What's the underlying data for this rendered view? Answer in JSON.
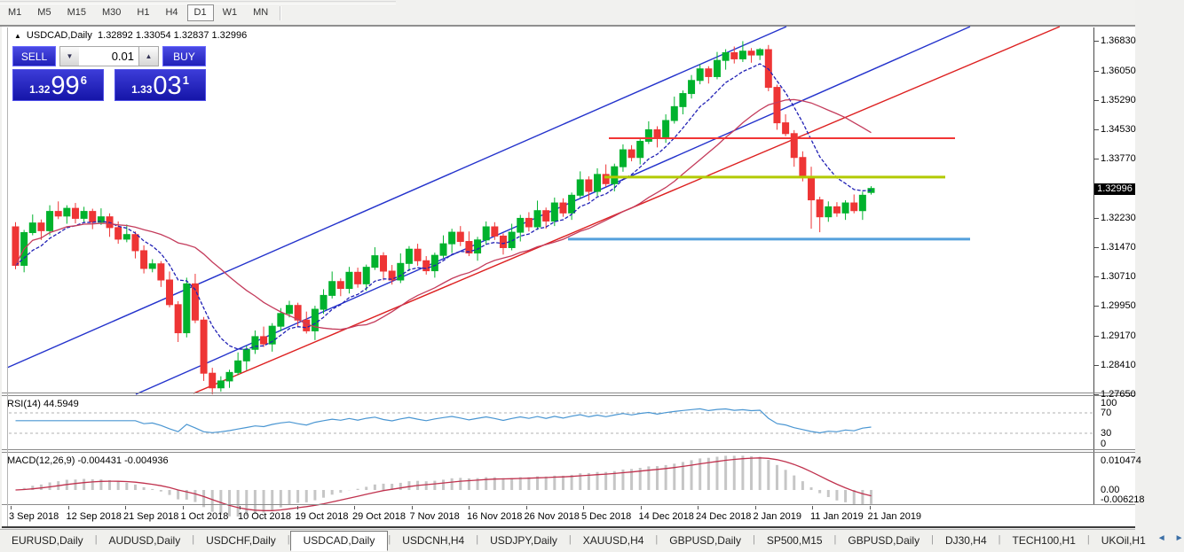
{
  "toolbar": {
    "timeframes": [
      "M1",
      "M5",
      "M15",
      "M30",
      "H1",
      "H4",
      "D1",
      "W1",
      "MN"
    ],
    "active_timeframe": "D1"
  },
  "header": {
    "collapse_arrow": "▲",
    "symbol": "USDCAD,Daily",
    "open": "1.32892",
    "high": "1.33054",
    "low": "1.32837",
    "close": "1.32996"
  },
  "trade_panel": {
    "sell_label": "SELL",
    "buy_label": "BUY",
    "volume": "0.01",
    "spinner_up": "▲",
    "spinner_down": "▼",
    "sell_price": {
      "small": "1.32",
      "big": "99",
      "sup": "6"
    },
    "buy_price": {
      "small": "1.33",
      "big": "03",
      "sup": "1"
    }
  },
  "chart_data": {
    "type": "candlestick",
    "symbol": "USDCAD",
    "timeframe": "Daily",
    "ylim": [
      1.2765,
      1.3683
    ],
    "price_axis_ticks": [
      "1.36830",
      "1.36050",
      "1.35290",
      "1.34530",
      "1.33770",
      "1.32230",
      "1.31470",
      "1.30710",
      "1.29950",
      "1.29170",
      "1.28410",
      "1.27650"
    ],
    "current_price": "1.32996",
    "x_axis_dates": [
      "3 Sep 2018",
      "12 Sep 2018",
      "21 Sep 2018",
      "1 Oct 2018",
      "10 Oct 2018",
      "19 Oct 2018",
      "29 Oct 2018",
      "7 Nov 2018",
      "16 Nov 2018",
      "26 Nov 2018",
      "5 Dec 2018",
      "14 Dec 2018",
      "24 Dec 2018",
      "2 Jan 2019",
      "11 Jan 2019",
      "21 Jan 2019"
    ],
    "closes": [
      1.31,
      1.3185,
      1.321,
      1.319,
      1.324,
      1.3228,
      1.3248,
      1.3222,
      1.324,
      1.3212,
      1.3226,
      1.3198,
      1.3168,
      1.318,
      1.3138,
      1.3092,
      1.3104,
      1.3062,
      1.2998,
      1.2925,
      1.3052,
      1.2958,
      1.282,
      1.2782,
      1.28,
      1.2822,
      1.2852,
      1.2882,
      1.2915,
      1.2896,
      1.2942,
      1.2975,
      1.2996,
      1.2958,
      1.293,
      1.2986,
      1.3022,
      1.3058,
      1.304,
      1.3082,
      1.3052,
      1.3095,
      1.3125,
      1.3085,
      1.3062,
      1.3105,
      1.3142,
      1.3112,
      1.3086,
      1.3126,
      1.3156,
      1.3186,
      1.3162,
      1.3132,
      1.3166,
      1.32,
      1.3176,
      1.3146,
      1.3186,
      1.3222,
      1.32,
      1.3242,
      1.3215,
      1.3262,
      1.3236,
      1.3282,
      1.3322,
      1.3292,
      1.3336,
      1.3312,
      1.3356,
      1.34,
      1.338,
      1.3422,
      1.3452,
      1.343,
      1.3476,
      1.3512,
      1.3546,
      1.358,
      1.361,
      1.359,
      1.3632,
      1.3652,
      1.3636,
      1.3656,
      1.3646,
      1.366,
      1.3562,
      1.347,
      1.3442,
      1.338,
      1.333,
      1.327,
      1.3226,
      1.3252,
      1.3236,
      1.3262,
      1.3242,
      1.3282,
      1.32996
    ],
    "first_open": 1.32,
    "wick_high_pattern": [
      0.0012,
      0.0007,
      0.0022,
      0.0009,
      0.0016,
      0.0026,
      0.0008,
      0.0014
    ],
    "wick_low_pattern": [
      0.001,
      0.0018,
      0.0007,
      0.0024,
      0.0012,
      0.0008,
      0.002,
      0.0013
    ],
    "overrides": {
      "23": {
        "low": 1.2765
      },
      "87": {
        "high": 1.3664
      },
      "93": {
        "low": 1.3195
      },
      "94": {
        "low": 1.3186
      },
      "100": {
        "open": 1.32892,
        "high": 1.33054,
        "low": 1.32837,
        "close": 1.32996
      }
    },
    "colors": {
      "up": "#00b22d",
      "down": "#ee3535",
      "ma_fast": "#2121b5",
      "ma_slow": "#c43c5c",
      "channel_blue": "#2433cc",
      "trend_red": "#dd2020"
    },
    "moving_averages": [
      {
        "type": "ema",
        "period": 8,
        "style": "dashed",
        "color": "#2121b5"
      },
      {
        "type": "sma",
        "period": 21,
        "style": "solid",
        "color": "#c43c5c"
      }
    ],
    "horizontal_lines": [
      {
        "price": 1.343,
        "x1": 686,
        "x2": 1076,
        "width": 2,
        "color": "#f23535"
      },
      {
        "price": 1.3329,
        "x1": 681,
        "x2": 1065,
        "width": 3,
        "color": "#b2ca00"
      },
      {
        "price": 1.3168,
        "x1": 640,
        "x2": 1093,
        "width": 3,
        "color": "#54a0dc"
      }
    ],
    "trendlines": [
      {
        "x1": 8,
        "y1": 415,
        "x2": 886,
        "y2": 30,
        "color": "#2433cc"
      },
      {
        "x1": 153,
        "y1": 445,
        "x2": 1093,
        "y2": 30,
        "color": "#2433cc"
      },
      {
        "x1": 218,
        "y1": 444,
        "x2": 1194,
        "y2": 30,
        "color": "#dd2020"
      }
    ],
    "indicators": {
      "rsi": {
        "label": "RSI(14) 44.5949",
        "period": 14,
        "value": 44.5949,
        "levels": [
          70,
          30
        ],
        "axis": [
          "100",
          "70",
          "30",
          "0"
        ],
        "color": "#4a96d2"
      },
      "macd": {
        "label": "MACD(12,26,9) -0.004431 -0.004936",
        "fast": 12,
        "slow": 26,
        "signal": 9,
        "value_main": -0.004431,
        "value_signal": -0.004936,
        "axis": [
          "0.010474",
          "0.00",
          "-0.006218"
        ],
        "bar_color": "#c6c6c6",
        "signal_color": "#c0324e"
      }
    }
  },
  "tabbar": {
    "tabs": [
      "EURUSD,Daily",
      "AUDUSD,Daily",
      "USDCHF,Daily",
      "USDCAD,Daily",
      "USDCNH,H4",
      "USDJPY,Daily",
      "XAUUSD,H4",
      "GBPUSD,Daily",
      "SP500,M15",
      "GBPUSD,Daily",
      "DJ30,H4",
      "TECH100,H1",
      "UKOil,H1"
    ],
    "active_tab": "USDCAD,Daily",
    "arrow_left": "◄",
    "arrow_right": "►"
  }
}
